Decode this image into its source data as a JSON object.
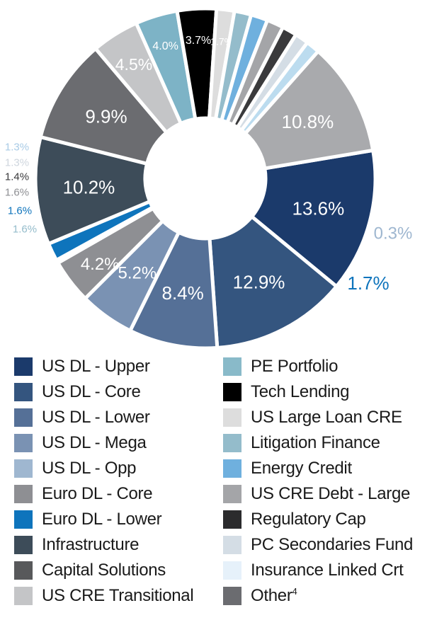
{
  "chart_data": {
    "type": "pie",
    "title": "",
    "slices": [
      {
        "name": "US DL - Upper",
        "value": 13.6,
        "label": "13.6%",
        "color": "#1b3a6b"
      },
      {
        "name": "US DL - Core",
        "value": 12.9,
        "label": "12.9%",
        "color": "#34557f"
      },
      {
        "name": "US DL - Lower",
        "value": 8.4,
        "label": "8.4%",
        "color": "#557097"
      },
      {
        "name": "US DL - Mega",
        "value": 5.2,
        "label": "5.2%",
        "color": "#7a92b3"
      },
      {
        "name": "Euro DL - Core",
        "value": 4.2,
        "label": "4.2%",
        "color": "#8e8f93"
      },
      {
        "name": "US DL - Opp",
        "value": 0.3,
        "label": "0.3%",
        "color": "#9fb7d0"
      },
      {
        "name": "Euro DL - Lower",
        "value": 1.7,
        "label": "1.7%",
        "color": "#0e74bc"
      },
      {
        "name": "Infrastructure",
        "value": 10.2,
        "label": "10.2%",
        "color": "#3d4c59"
      },
      {
        "name": "Other",
        "value": 9.9,
        "label": "9.9%",
        "color": "#6b6c70"
      },
      {
        "name": "US CRE Transitional",
        "value": 4.5,
        "label": "4.5%",
        "color": "#c4c5c7"
      },
      {
        "name": "PE Portfolio",
        "value": 4.0,
        "label": "4.0%",
        "color": "#7db3c6"
      },
      {
        "name": "Tech Lending",
        "value": 3.7,
        "label": "3.7%",
        "color": "#000000"
      },
      {
        "name": "US Large Loan CRE",
        "value": 1.7,
        "label": "1.7%",
        "color": "#dddddd"
      },
      {
        "name": "Litigation Finance",
        "value": 1.6,
        "label": "1.6%",
        "color": "#94bccb"
      },
      {
        "name": "Energy Credit",
        "value": 1.6,
        "label": "1.6%",
        "color": "#6fb0de"
      },
      {
        "name": "US CRE Debt - Large",
        "value": 1.6,
        "label": "1.6%",
        "color": "#a4a5a8"
      },
      {
        "name": "Regulatory Cap",
        "value": 1.4,
        "label": "1.4%",
        "color": "#3a3a3c"
      },
      {
        "name": "PC Secondaries Fund",
        "value": 1.3,
        "label": "1.3%",
        "color": "#d4dde5"
      },
      {
        "name": "Insurance Linked Crt",
        "value": 1.3,
        "label": "1.3%",
        "color": "#bcdcef"
      },
      {
        "name": "Capital Solutions",
        "value": 10.8,
        "label": "10.8%",
        "color": "#a9aaad"
      }
    ],
    "legend": {
      "left": [
        {
          "label": "US DL - Upper",
          "color": "#1b3a6b"
        },
        {
          "label": "US DL - Core",
          "color": "#34557f"
        },
        {
          "label": "US DL - Lower",
          "color": "#557097"
        },
        {
          "label": "US DL - Mega",
          "color": "#7a92b3"
        },
        {
          "label": "US DL - Opp",
          "color": "#9fb7d0"
        },
        {
          "label": "Euro DL - Core",
          "color": "#8e8f93"
        },
        {
          "label": "Euro DL - Lower",
          "color": "#0e74bc"
        },
        {
          "label": "Infrastructure",
          "color": "#3d4c59"
        },
        {
          "label": "Capital Solutions",
          "color": "#58595b"
        },
        {
          "label": "US CRE Transitional",
          "color": "#c4c5c7"
        }
      ],
      "right": [
        {
          "label": "PE Portfolio",
          "color": "#89bac9"
        },
        {
          "label": "Tech Lending",
          "color": "#000000"
        },
        {
          "label": "US Large Loan CRE",
          "color": "#dddddd"
        },
        {
          "label": "Litigation Finance",
          "color": "#94bccb"
        },
        {
          "label": "Energy Credit",
          "color": "#6fb0de"
        },
        {
          "label": "US CRE Debt - Large",
          "color": "#a4a5a8"
        },
        {
          "label": "Regulatory Cap",
          "color": "#2b2b2d"
        },
        {
          "label": "PC Secondaries Fund",
          "color": "#d4dde5"
        },
        {
          "label": "Insurance Linked Crt",
          "color": "#e6f1fa"
        },
        {
          "label": "Other",
          "sup": "4",
          "color": "#6b6c70"
        }
      ]
    },
    "legend_placement": "bottom"
  }
}
